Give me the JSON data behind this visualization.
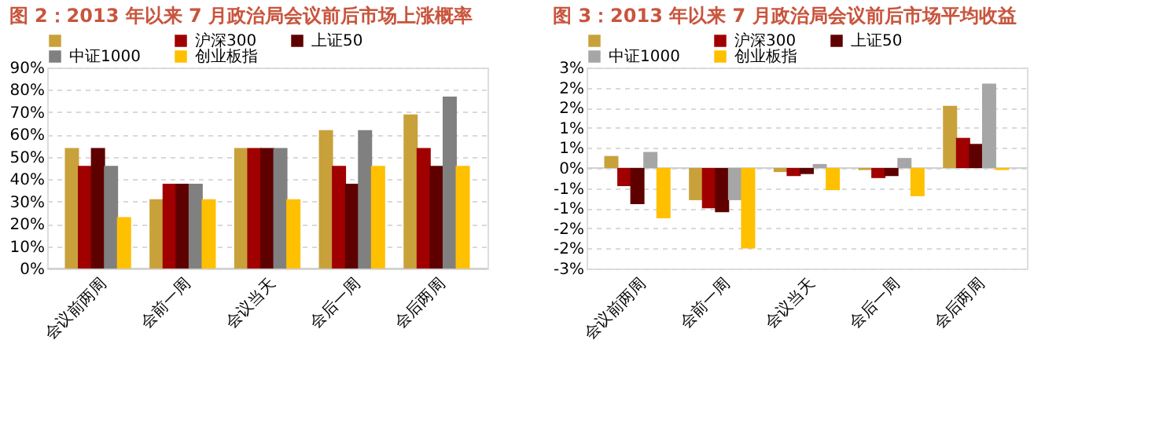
{
  "chart_data": [
    {
      "type": "bar",
      "title": "图 2：2013 年以来 7 月政治局会议前后市场上涨概率",
      "categories": [
        "会议前两周",
        "会前一周",
        "会议当天",
        "会后一周",
        "会后两周"
      ],
      "series": [
        {
          "color": "#c9a13a",
          "values": [
            54,
            31,
            54,
            62,
            69
          ]
        },
        {
          "name": "沪深300",
          "color": "#a00000",
          "values": [
            46,
            38,
            54,
            46,
            54
          ]
        },
        {
          "name": "上证50",
          "color": "#5e0000",
          "values": [
            54,
            38,
            54,
            38,
            46
          ]
        },
        {
          "name": "中证1000",
          "color": "#808080",
          "values": [
            46,
            38,
            54,
            62,
            77
          ]
        },
        {
          "name": "创业板指",
          "color": "#ffc000",
          "values": [
            23,
            31,
            31,
            46,
            46
          ]
        }
      ],
      "ylim": [
        0,
        90
      ],
      "yticks": [
        {
          "value": 0,
          "label": "0%"
        },
        {
          "value": 10,
          "label": "10%"
        },
        {
          "value": 20,
          "label": "20%"
        },
        {
          "value": 30,
          "label": "30%"
        },
        {
          "value": 40,
          "label": "40%"
        },
        {
          "value": 50,
          "label": "50%"
        },
        {
          "value": 60,
          "label": "60%"
        },
        {
          "value": 70,
          "label": "70%"
        },
        {
          "value": 80,
          "label": "80%"
        },
        {
          "value": 90,
          "label": "90%"
        }
      ],
      "grid": "y",
      "legend": "top"
    },
    {
      "type": "bar",
      "title": "图 3：2013 年以来 7 月政治局会议前后市场平均收益",
      "categories": [
        "会议前两周",
        "会前一周",
        "会议当天",
        "会后一周",
        "会后两周"
      ],
      "series": [
        {
          "color": "#c9a13a",
          "values": [
            0.3,
            -0.8,
            -0.1,
            -0.05,
            1.55
          ]
        },
        {
          "name": "沪深300",
          "color": "#a00000",
          "values": [
            -0.45,
            -1.0,
            -0.2,
            -0.25,
            0.75
          ]
        },
        {
          "name": "上证50",
          "color": "#5e0000",
          "values": [
            -0.9,
            -1.1,
            -0.15,
            -0.2,
            0.6
          ]
        },
        {
          "name": "中证1000",
          "color": "#a6a6a6",
          "values": [
            0.4,
            -0.8,
            0.1,
            0.25,
            2.1
          ]
        },
        {
          "name": "创业板指",
          "color": "#ffc000",
          "values": [
            -1.25,
            -2.0,
            -0.55,
            -0.7,
            -0.05
          ]
        }
      ],
      "ylim": [
        -2.5,
        2.5
      ],
      "yticks": [
        {
          "value": -2.5,
          "label": "-3%"
        },
        {
          "value": -2,
          "label": "-2%"
        },
        {
          "value": -1.5,
          "label": "-2%"
        },
        {
          "value": -1,
          "label": "-1%"
        },
        {
          "value": -0.5,
          "label": "-1%"
        },
        {
          "value": 0,
          "label": "0%"
        },
        {
          "value": 0.5,
          "label": "1%"
        },
        {
          "value": 1,
          "label": "1%"
        },
        {
          "value": 1.5,
          "label": "2%"
        },
        {
          "value": 2,
          "label": "2%"
        },
        {
          "value": 2.5,
          "label": "3%"
        }
      ],
      "grid": "y",
      "legend": "top"
    }
  ]
}
